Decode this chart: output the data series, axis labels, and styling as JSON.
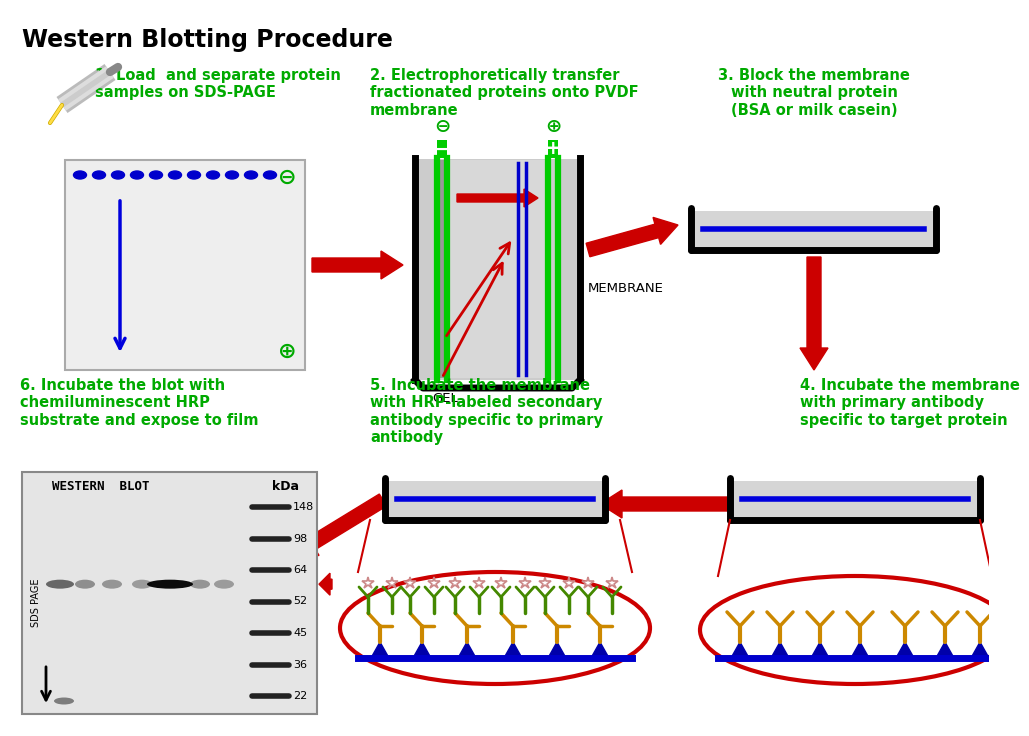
{
  "title": "Western Blotting Procedure",
  "title_fontsize": 17,
  "title_color": "#000000",
  "background_color": "#ffffff",
  "step1_label": "1. Load  and separate protein\nsamples on SDS-PAGE",
  "step2_label": "2. Electrophoretically transfer\nfractionated proteins onto PVDF\nmembrane",
  "step3_label": "3. Block the membrane\nwith neutral protein\n(BSA or milk casein)",
  "step4_label": "4. Incubate the membrane\nwith primary antibody\nspecific to target protein",
  "step5_label": "5. Incubate the membrane\nwith HRP-labeled secondary\nantibody specific to primary\nantibody",
  "step6_label": "6. Incubate the blot with\nchemiluminescent HRP\nsubstrate and expose to film",
  "label_color": "#00aa00",
  "label_fontsize": 10.5,
  "arrow_color": "#cc0000",
  "gel_green": "#00cc00",
  "membrane_blue": "#0000cc",
  "band_color": "#333333",
  "kda_labels": [
    "148",
    "98",
    "64",
    "52",
    "45",
    "36",
    "22"
  ],
  "western_blot_title": "WESTERN  BLOT",
  "kda_header": "kDa",
  "sds_page_label": "SDS PAGE"
}
